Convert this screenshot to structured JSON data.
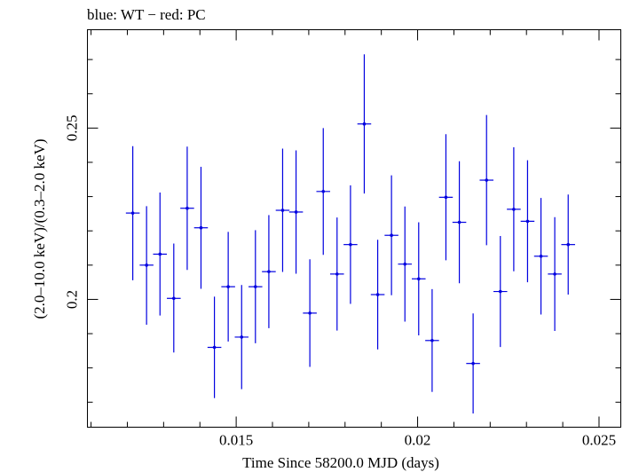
{
  "chart_data": {
    "type": "scatter",
    "title": "blue: WT − red: PC",
    "xlabel": "Time Since 58200.0 MJD (days)",
    "ylabel": "(2.0–10.0 keV)/(0.3–2.0 keV)",
    "xlim": [
      0.0109,
      0.0256
    ],
    "ylim": [
      0.1627,
      0.2787
    ],
    "x_ticks": [
      0.015,
      0.02,
      0.025
    ],
    "x_tick_labels": [
      "0.015",
      "0.02",
      "0.025"
    ],
    "y_ticks": [
      0.2,
      0.25
    ],
    "y_tick_labels": [
      "0.2",
      "0.25"
    ],
    "grid": false,
    "series": [
      {
        "color": "#0000e0",
        "points": [
          {
            "x": 0.01215,
            "xerr": 0.00019,
            "y": 0.2252,
            "yerr_lo": 0.0196,
            "yerr_hi": 0.0195
          },
          {
            "x": 0.01253,
            "xerr": 0.00019,
            "y": 0.21,
            "yerr_lo": 0.0174,
            "yerr_hi": 0.0172
          },
          {
            "x": 0.0129,
            "xerr": 0.00019,
            "y": 0.2132,
            "yerr_lo": 0.0179,
            "yerr_hi": 0.018
          },
          {
            "x": 0.01328,
            "xerr": 0.00019,
            "y": 0.2003,
            "yerr_lo": 0.0158,
            "yerr_hi": 0.016
          },
          {
            "x": 0.01365,
            "xerr": 0.00019,
            "y": 0.2266,
            "yerr_lo": 0.018,
            "yerr_hi": 0.018
          },
          {
            "x": 0.01403,
            "xerr": 0.00019,
            "y": 0.2209,
            "yerr_lo": 0.0178,
            "yerr_hi": 0.0178
          },
          {
            "x": 0.0144,
            "xerr": 0.00019,
            "y": 0.186,
            "yerr_lo": 0.0148,
            "yerr_hi": 0.0148
          },
          {
            "x": 0.01478,
            "xerr": 0.00019,
            "y": 0.2037,
            "yerr_lo": 0.016,
            "yerr_hi": 0.016
          },
          {
            "x": 0.01515,
            "xerr": 0.00019,
            "y": 0.189,
            "yerr_lo": 0.0152,
            "yerr_hi": 0.0152
          },
          {
            "x": 0.01553,
            "xerr": 0.00019,
            "y": 0.2037,
            "yerr_lo": 0.0165,
            "yerr_hi": 0.0165
          },
          {
            "x": 0.0159,
            "xerr": 0.00019,
            "y": 0.2081,
            "yerr_lo": 0.0165,
            "yerr_hi": 0.0165
          },
          {
            "x": 0.01628,
            "xerr": 0.00019,
            "y": 0.226,
            "yerr_lo": 0.018,
            "yerr_hi": 0.018
          },
          {
            "x": 0.01665,
            "xerr": 0.00019,
            "y": 0.2255,
            "yerr_lo": 0.018,
            "yerr_hi": 0.018
          },
          {
            "x": 0.01703,
            "xerr": 0.00019,
            "y": 0.196,
            "yerr_lo": 0.0157,
            "yerr_hi": 0.0157
          },
          {
            "x": 0.0174,
            "xerr": 0.00019,
            "y": 0.2315,
            "yerr_lo": 0.0185,
            "yerr_hi": 0.0185
          },
          {
            "x": 0.01778,
            "xerr": 0.00019,
            "y": 0.2074,
            "yerr_lo": 0.0165,
            "yerr_hi": 0.0165
          },
          {
            "x": 0.01815,
            "xerr": 0.00019,
            "y": 0.216,
            "yerr_lo": 0.0173,
            "yerr_hi": 0.0173
          },
          {
            "x": 0.01853,
            "xerr": 0.00019,
            "y": 0.2512,
            "yerr_lo": 0.0203,
            "yerr_hi": 0.0203
          },
          {
            "x": 0.0189,
            "xerr": 0.00019,
            "y": 0.2014,
            "yerr_lo": 0.016,
            "yerr_hi": 0.016
          },
          {
            "x": 0.01928,
            "xerr": 0.00019,
            "y": 0.2187,
            "yerr_lo": 0.0175,
            "yerr_hi": 0.0175
          },
          {
            "x": 0.01965,
            "xerr": 0.00019,
            "y": 0.2103,
            "yerr_lo": 0.0168,
            "yerr_hi": 0.0168
          },
          {
            "x": 0.02003,
            "xerr": 0.00019,
            "y": 0.206,
            "yerr_lo": 0.0165,
            "yerr_hi": 0.0165
          },
          {
            "x": 0.0204,
            "xerr": 0.00019,
            "y": 0.188,
            "yerr_lo": 0.015,
            "yerr_hi": 0.015
          },
          {
            "x": 0.02078,
            "xerr": 0.00019,
            "y": 0.2298,
            "yerr_lo": 0.0184,
            "yerr_hi": 0.0184
          },
          {
            "x": 0.02115,
            "xerr": 0.00019,
            "y": 0.2225,
            "yerr_lo": 0.0178,
            "yerr_hi": 0.0178
          },
          {
            "x": 0.02153,
            "xerr": 0.00019,
            "y": 0.1813,
            "yerr_lo": 0.0146,
            "yerr_hi": 0.0146
          },
          {
            "x": 0.0219,
            "xerr": 0.00019,
            "y": 0.2348,
            "yerr_lo": 0.019,
            "yerr_hi": 0.019
          },
          {
            "x": 0.02228,
            "xerr": 0.00019,
            "y": 0.2023,
            "yerr_lo": 0.0162,
            "yerr_hi": 0.0162
          },
          {
            "x": 0.02265,
            "xerr": 0.00019,
            "y": 0.2263,
            "yerr_lo": 0.0181,
            "yerr_hi": 0.0181
          },
          {
            "x": 0.02303,
            "xerr": 0.00019,
            "y": 0.2228,
            "yerr_lo": 0.0178,
            "yerr_hi": 0.0178
          },
          {
            "x": 0.0234,
            "xerr": 0.00019,
            "y": 0.2126,
            "yerr_lo": 0.017,
            "yerr_hi": 0.017
          },
          {
            "x": 0.02378,
            "xerr": 0.00019,
            "y": 0.2074,
            "yerr_lo": 0.0166,
            "yerr_hi": 0.0166
          },
          {
            "x": 0.02415,
            "xerr": 0.00019,
            "y": 0.216,
            "yerr_lo": 0.0146,
            "yerr_hi": 0.0146
          }
        ]
      }
    ]
  }
}
